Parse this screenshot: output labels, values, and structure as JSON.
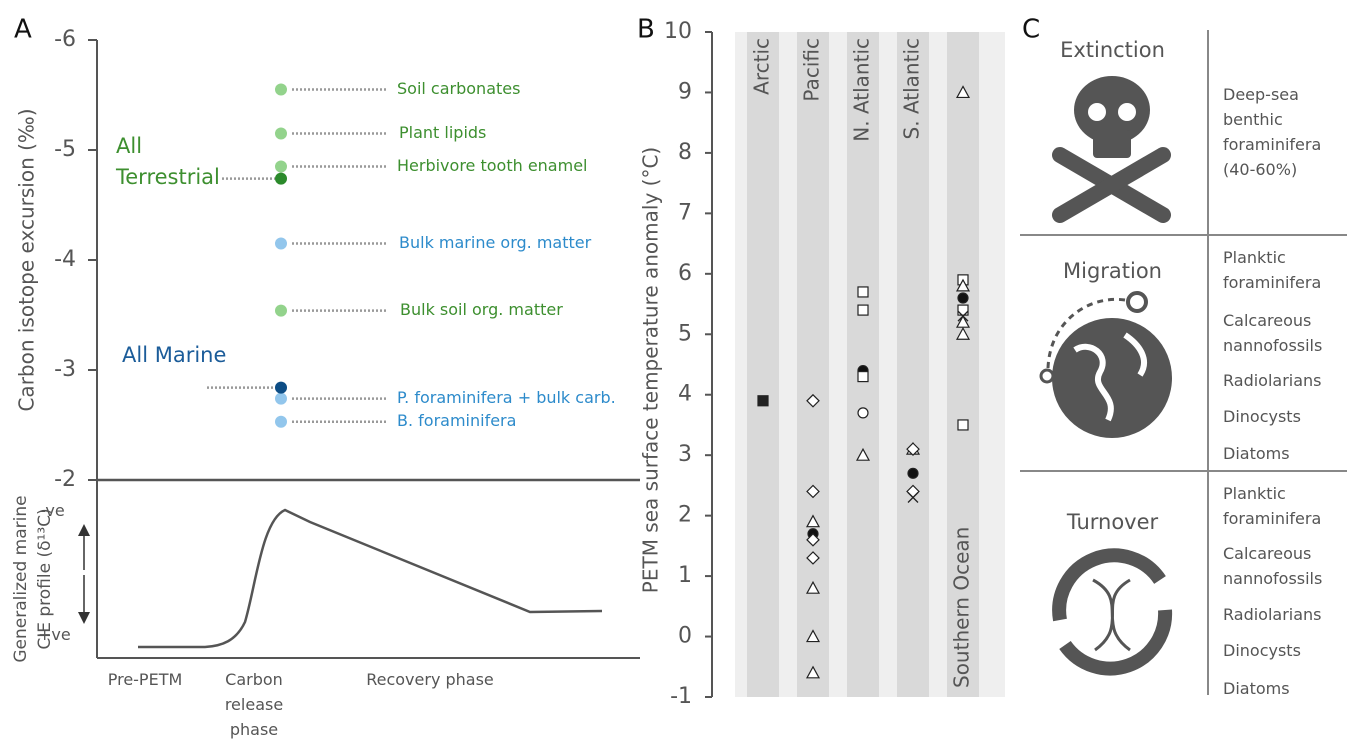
{
  "panel_labels": [
    "A",
    "B",
    "C"
  ],
  "chart_data": [
    {
      "type": "dot",
      "ylabel": "Carbon isotope excursion (‰)",
      "ylim": [
        -2,
        -6
      ],
      "yticks": [
        -6,
        -5,
        -4,
        -3,
        -2
      ],
      "categories": [
        "Soil carbonates",
        "Plant lipids",
        "Herbivore tooth enamel",
        "Bulk marine org. matter",
        "Bulk soil org. matter",
        "P. foraminifera + bulk carb.",
        "B. foraminifera"
      ],
      "values": [
        -5.55,
        -5.15,
        -4.85,
        -4.15,
        -3.54,
        -2.74,
        -2.53
      ],
      "colors": [
        "#93d38c",
        "#93d38c",
        "#93d38c",
        "#92c6ec",
        "#93d38c",
        "#92c6ec",
        "#92c6ec"
      ],
      "label_colors": [
        "#3d8f2f",
        "#3d8f2f",
        "#3d8f2f",
        "#2d8bcb",
        "#3d8f2f",
        "#2d8bcb",
        "#2d8bcb"
      ],
      "groups": {
        "categories": [
          "All Terrestrial",
          "All Marine"
        ],
        "values": [
          -4.74,
          -2.84
        ],
        "colors": [
          "#2b8a2b",
          "#0d4d85"
        ]
      }
    },
    {
      "type": "scatter",
      "ylabel": "PETM sea surface temperature anomaly (°C)",
      "ylim": [
        -1,
        10
      ],
      "yticks": [
        -1,
        0,
        1,
        2,
        3,
        4,
        5,
        6,
        7,
        8,
        9,
        10
      ],
      "series": [
        {
          "name": "Arctic",
          "values": [
            3.9
          ],
          "markers": [
            "square-filled"
          ]
        },
        {
          "name": "Pacific",
          "values": [
            3.9,
            2.4,
            1.9,
            1.7,
            1.6,
            1.3,
            0.8,
            0,
            -0.6
          ],
          "markers": [
            "diamond",
            "diamond",
            "triangle",
            "circle-filled",
            "diamond",
            "diamond",
            "triangle",
            "triangle",
            "triangle"
          ]
        },
        {
          "name": "N. Atlantic",
          "values": [
            5.7,
            5.4,
            4.4,
            4.3,
            3.7,
            3.0
          ],
          "markers": [
            "square",
            "square",
            "circle-filled",
            "square",
            "circle",
            "triangle"
          ]
        },
        {
          "name": "S. Atlantic",
          "values": [
            3.1,
            3.1,
            2.7,
            2.4,
            2.3
          ],
          "markers": [
            "triangle",
            "diamond",
            "circle-filled",
            "diamond",
            "x"
          ]
        },
        {
          "name": "Southern Ocean",
          "values": [
            9.0,
            5.9,
            5.8,
            5.6,
            5.4,
            5.3,
            5.2,
            5.0,
            3.5
          ],
          "markers": [
            "triangle",
            "square",
            "triangle",
            "circle-filled",
            "square",
            "x",
            "triangle",
            "triangle",
            "square"
          ]
        }
      ]
    }
  ],
  "schematic": {
    "ylabel": "Generalized marine CIE profile (δ¹³C)",
    "top": "-ve",
    "bottom": "+ve",
    "x_labels": [
      "Pre-PETM",
      "Carbon release phase",
      "Recovery phase"
    ]
  },
  "panel_c": {
    "rows": [
      {
        "title": "Extinction",
        "items": [
          "Deep-sea benthic foraminifera (40-60%)"
        ]
      },
      {
        "title": "Migration",
        "items": [
          "Planktic foraminifera",
          "Calcareous nannofossils",
          "Radiolarians",
          "Dinocysts",
          "Diatoms"
        ]
      },
      {
        "title": "Turnover",
        "items": [
          "Planktic foraminifera",
          "Calcareous nannofossils",
          "Radiolarians",
          "Dinocysts",
          "Diatoms"
        ]
      }
    ]
  }
}
